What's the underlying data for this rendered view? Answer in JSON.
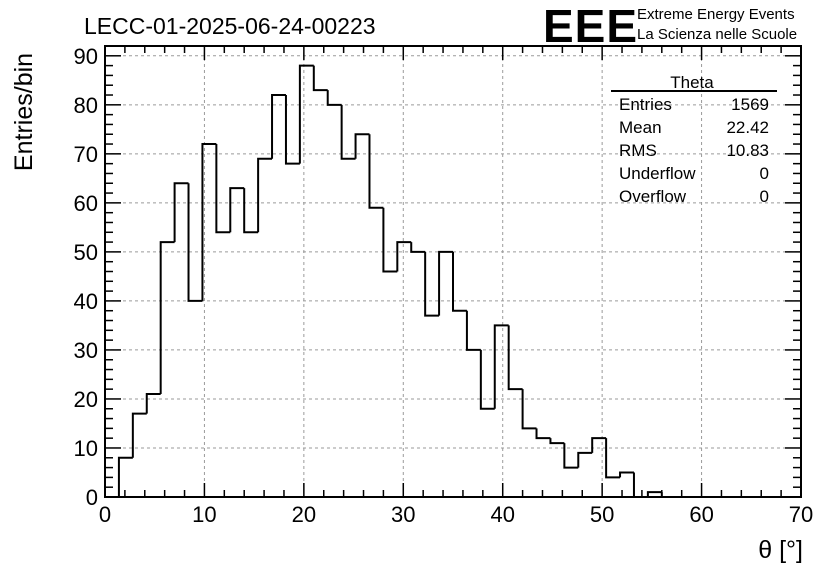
{
  "title": "LECC-01-2025-06-24-00223",
  "logo": {
    "mark": "EEE",
    "line1": "Extreme Energy Events",
    "line2": "La Scienza nelle Scuole",
    "color": "#1f1fe6"
  },
  "stats": {
    "name": "Theta",
    "rows": [
      {
        "label": "Entries",
        "value": "1569"
      },
      {
        "label": "Mean",
        "value": "22.42"
      },
      {
        "label": "RMS",
        "value": "10.83"
      },
      {
        "label": "Underflow",
        "value": "0"
      },
      {
        "label": "Overflow",
        "value": "0"
      }
    ]
  },
  "chart_data": {
    "type": "bar",
    "style": "step-histogram",
    "title": "LECC-01-2025-06-24-00223",
    "xlabel": "θ [°]",
    "ylabel": "Entries/bin",
    "xlim": [
      0,
      70
    ],
    "ylim": [
      0,
      92
    ],
    "xticks": [
      0,
      10,
      20,
      30,
      40,
      50,
      60,
      70
    ],
    "yticks": [
      0,
      10,
      20,
      30,
      40,
      50,
      60,
      70,
      80,
      90
    ],
    "grid": true,
    "bin_width": 1.4,
    "bin_edges_start": 0,
    "values": [
      0,
      8,
      17,
      21,
      52,
      64,
      40,
      72,
      54,
      63,
      54,
      69,
      82,
      68,
      88,
      83,
      80,
      69,
      74,
      59,
      46,
      52,
      50,
      37,
      50,
      38,
      30,
      18,
      35,
      22,
      14,
      12,
      11,
      6,
      9,
      12,
      4,
      5,
      0,
      1,
      0,
      0,
      0,
      0,
      0,
      0,
      0,
      0,
      0,
      0
    ],
    "line_color": "#000000"
  }
}
